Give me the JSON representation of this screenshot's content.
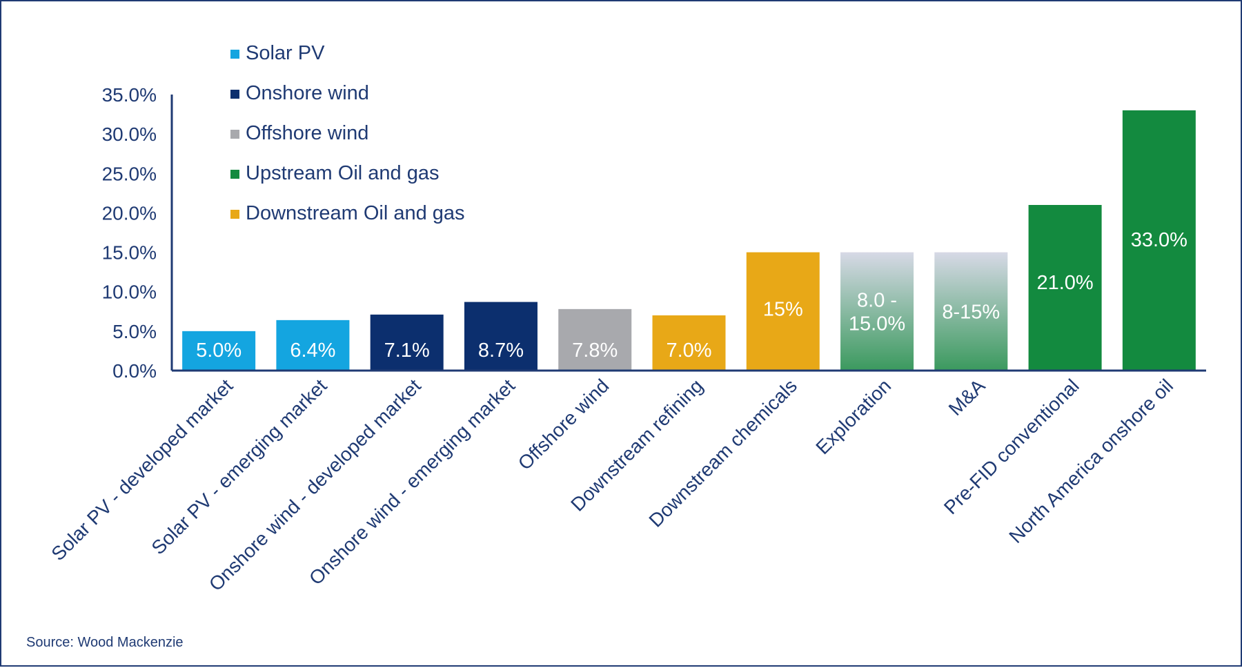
{
  "chart_data": {
    "type": "bar",
    "categories": [
      "Solar PV - developed market",
      "Solar PV - emerging market",
      "Onshore wind - developed market",
      "Onshore wind - emerging market",
      "Offshore wind",
      "Downstream refining",
      "Downstream chemicals",
      "Exploration",
      "M&A",
      "Pre-FID conventional",
      "North America onshore oil"
    ],
    "values": [
      5.0,
      6.4,
      7.1,
      8.7,
      7.8,
      7.0,
      15.0,
      15.0,
      15.0,
      21.0,
      33.0
    ],
    "range_low": [
      null,
      null,
      null,
      null,
      null,
      null,
      null,
      8.0,
      8.0,
      null,
      null
    ],
    "data_labels": [
      "5.0%",
      "6.4%",
      "7.1%",
      "8.7%",
      "7.8%",
      "7.0%",
      "15%",
      "8.0 -\n15.0%",
      "8-15%",
      "21.0%",
      "33.0%"
    ],
    "series_group": [
      "solar",
      "solar",
      "onshore",
      "onshore",
      "offshore",
      "downstream",
      "downstream",
      "upstream_range",
      "upstream_range",
      "upstream",
      "upstream"
    ],
    "colors": {
      "solar": "#14a5e0",
      "onshore": "#0c2f6e",
      "offshore": "#a8a9ad",
      "upstream": "#138a3f",
      "downstream": "#e8a817",
      "upstream_range_top": "#d7d9e6",
      "upstream_range_bottom": "#3c9a5f",
      "axis": "#1f3a73",
      "text": "#1f3a73"
    },
    "yticks": [
      "0.0%",
      "5.0%",
      "10.0%",
      "15.0%",
      "20.0%",
      "25.0%",
      "30.0%",
      "35.0%"
    ],
    "ylim": [
      0,
      35
    ],
    "legend": [
      {
        "label": "Solar PV",
        "color": "#14a5e0"
      },
      {
        "label": "Onshore wind",
        "color": "#0c2f6e"
      },
      {
        "label": "Offshore wind",
        "color": "#a8a9ad"
      },
      {
        "label": "Upstream Oil and gas",
        "color": "#138a3f"
      },
      {
        "label": "Downstream Oil and gas",
        "color": "#e8a817"
      }
    ],
    "legend_position": "top-left",
    "grid": false,
    "source": "Source:  Wood  Mackenzie"
  }
}
